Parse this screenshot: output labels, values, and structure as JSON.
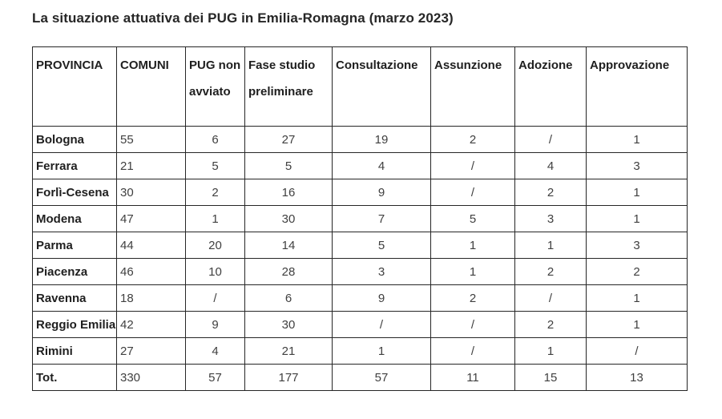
{
  "title": "La situazione attuativa dei PUG in Emilia-Romagna (marzo 2023)",
  "table": {
    "columns": [
      {
        "key": "provincia",
        "label": "PROVINCIA"
      },
      {
        "key": "comuni",
        "label": "COMUNI"
      },
      {
        "key": "pug-non-avviato",
        "label": "PUG non avviato"
      },
      {
        "key": "fase-studio-preliminare",
        "label": "Fase studio preliminare"
      },
      {
        "key": "consultazione",
        "label": "Consultazione"
      },
      {
        "key": "assunzione",
        "label": "Assunzione"
      },
      {
        "key": "adozione",
        "label": "Adozione"
      },
      {
        "key": "approvazione",
        "label": "Approvazione"
      }
    ],
    "rows": [
      [
        "Bologna",
        "55",
        "6",
        "27",
        "19",
        "2",
        "/",
        "1"
      ],
      [
        "Ferrara",
        "21",
        "5",
        "5",
        "4",
        "/",
        "4",
        "3"
      ],
      [
        "Forlì-Cesena",
        "30",
        "2",
        "16",
        "9",
        "/",
        "2",
        "1"
      ],
      [
        "Modena",
        "47",
        "1",
        "30",
        "7",
        "5",
        "3",
        "1"
      ],
      [
        "Parma",
        "44",
        "20",
        "14",
        "5",
        "1",
        "1",
        "3"
      ],
      [
        "Piacenza",
        "46",
        "10",
        "28",
        "3",
        "1",
        "2",
        "2"
      ],
      [
        "Ravenna",
        "18",
        "/",
        "6",
        "9",
        "2",
        "/",
        "1"
      ],
      [
        "Reggio Emilia",
        "42",
        "9",
        "30",
        "/",
        "/",
        "2",
        "1"
      ],
      [
        "Rimini",
        "27",
        "4",
        "21",
        "1",
        "/",
        "1",
        "/"
      ],
      [
        "Tot.",
        "330",
        "57",
        "177",
        "57",
        "11",
        "15",
        "13"
      ]
    ]
  }
}
